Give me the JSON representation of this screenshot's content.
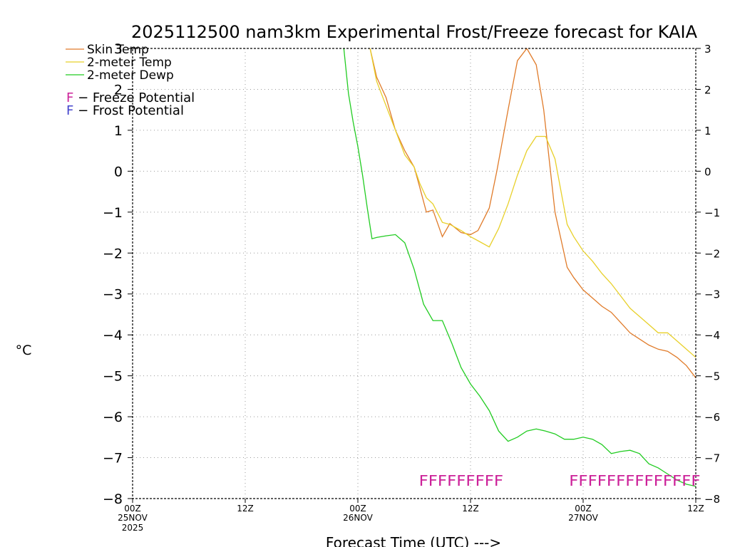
{
  "chart_data": {
    "type": "line",
    "title": "2025112500 nam3km Experimental Frost/Freeze forecast for KAIA",
    "xlabel": "Forecast Time (UTC) --->",
    "ylabel": "°C",
    "xlim": [
      0,
      60
    ],
    "ylim": [
      -8,
      3
    ],
    "grid": true,
    "x_ticks": [
      {
        "x": 0,
        "hour": "00Z",
        "date": "25NOV",
        "year": "2025"
      },
      {
        "x": 12,
        "hour": "12Z",
        "date": "",
        "year": ""
      },
      {
        "x": 24,
        "hour": "00Z",
        "date": "26NOV",
        "year": ""
      },
      {
        "x": 36,
        "hour": "12Z",
        "date": "",
        "year": ""
      },
      {
        "x": 48,
        "hour": "00Z",
        "date": "27NOV",
        "year": ""
      },
      {
        "x": 60,
        "hour": "12Z",
        "date": "",
        "year": ""
      }
    ],
    "y_ticks": [
      3,
      2,
      1,
      0,
      -1,
      -2,
      -3,
      -4,
      -5,
      -6,
      -7,
      -8
    ],
    "y_tick_labels_left": [
      "3",
      "2",
      "1",
      "0",
      "−1",
      "−2",
      "−3",
      "−4",
      "−5",
      "−6",
      "−7",
      "−8"
    ],
    "y_tick_labels_right": [
      "3",
      "2",
      "1",
      "0",
      "−1",
      "−2",
      "−3",
      "−4",
      "−5",
      "−6",
      "−7",
      "−8"
    ],
    "series": [
      {
        "name": "Skin Temp",
        "color": "#e07b2a",
        "x": [
          25.3,
          26.0,
          27.0,
          28.0,
          29.0,
          30.0,
          30.6,
          31.3,
          32.0,
          33.0,
          33.8,
          35.0,
          36.0,
          36.8,
          38.0,
          38.8,
          40.0,
          41.0,
          42.0,
          43.0,
          43.8,
          45.0,
          46.3,
          47.0,
          48.0,
          49.0,
          50.0,
          51.0,
          52.0,
          53.0,
          54.0,
          55.0,
          56.0,
          57.0,
          58.0,
          59.0,
          60.0
        ],
        "y": [
          3.0,
          2.3,
          1.8,
          1.0,
          0.5,
          0.1,
          -0.4,
          -1.0,
          -0.95,
          -1.6,
          -1.28,
          -1.5,
          -1.55,
          -1.45,
          -0.9,
          0.0,
          1.5,
          2.7,
          3.0,
          2.6,
          1.5,
          -1.0,
          -2.35,
          -2.6,
          -2.9,
          -3.1,
          -3.3,
          -3.45,
          -3.7,
          -3.95,
          -4.1,
          -4.25,
          -4.35,
          -4.4,
          -4.55,
          -4.75,
          -5.05
        ]
      },
      {
        "name": "2-meter Temp",
        "color": "#e8d02a",
        "x": [
          25.3,
          26.0,
          27.0,
          28.0,
          29.0,
          30.0,
          30.6,
          31.3,
          32.0,
          33.0,
          33.8,
          35.0,
          36.0,
          36.8,
          38.0,
          39.0,
          40.0,
          41.0,
          42.0,
          43.0,
          44.0,
          45.0,
          46.3,
          47.0,
          48.0,
          49.0,
          50.0,
          51.0,
          52.0,
          53.0,
          54.0,
          55.0,
          56.0,
          57.0,
          58.0,
          59.0,
          60.0
        ],
        "y": [
          3.0,
          2.2,
          1.6,
          1.0,
          0.4,
          0.1,
          -0.3,
          -0.65,
          -0.8,
          -1.25,
          -1.3,
          -1.45,
          -1.6,
          -1.7,
          -1.85,
          -1.4,
          -0.8,
          -0.1,
          0.5,
          0.85,
          0.85,
          0.3,
          -1.3,
          -1.6,
          -1.95,
          -2.2,
          -2.5,
          -2.75,
          -3.05,
          -3.35,
          -3.55,
          -3.75,
          -3.95,
          -3.95,
          -4.15,
          -4.35,
          -4.55
        ]
      },
      {
        "name": "2-meter Dewp",
        "color": "#22cc22",
        "x": [
          22.5,
          23.0,
          23.5,
          24.0,
          24.5,
          25.0,
          25.5,
          26.0,
          27.0,
          28.0,
          29.0,
          30.0,
          31.0,
          32.0,
          33.0,
          34.0,
          35.0,
          36.0,
          37.0,
          38.0,
          39.0,
          40.0,
          41.0,
          42.0,
          43.0,
          44.0,
          45.0,
          46.0,
          47.0,
          48.0,
          49.0,
          50.0,
          51.0,
          52.0,
          53.0,
          54.0,
          55.0,
          56.0,
          57.0,
          58.0,
          59.0,
          60.0
        ],
        "y": [
          3.0,
          1.9,
          1.2,
          0.6,
          -0.1,
          -0.9,
          -1.65,
          -1.62,
          -1.58,
          -1.55,
          -1.75,
          -2.4,
          -3.25,
          -3.65,
          -3.65,
          -4.2,
          -4.8,
          -5.2,
          -5.5,
          -5.85,
          -6.35,
          -6.6,
          -6.5,
          -6.35,
          -6.3,
          -6.35,
          -6.42,
          -6.55,
          -6.55,
          -6.5,
          -6.55,
          -6.68,
          -6.9,
          -6.85,
          -6.82,
          -6.9,
          -7.15,
          -7.25,
          -7.4,
          -7.55,
          -7.65,
          -7.7
        ]
      }
    ],
    "legend": {
      "position": "top-left",
      "entries": [
        {
          "label": "Skin Temp",
          "color": "#e07b2a"
        },
        {
          "label": "2-meter Temp",
          "color": "#e8d02a"
        },
        {
          "label": "2-meter Dewp",
          "color": "#22cc22"
        }
      ],
      "markers": [
        {
          "symbol": "F",
          "text": " − Freeze Potential",
          "color": "#cc2299"
        },
        {
          "symbol": "F",
          "text": " − Frost Potential",
          "color": "#4444cc"
        }
      ]
    },
    "annotations": [
      {
        "text": "FFFFFFFFF",
        "x_start": 30.5,
        "x_end": 39.5,
        "y": -7.55,
        "color": "#cc2299",
        "meaning": "Freeze Potential"
      },
      {
        "text": "FFFFFFFFFFFFFF",
        "x_start": 46.5,
        "x_end": 60.5,
        "y": -7.55,
        "color": "#cc2299",
        "meaning": "Freeze Potential"
      }
    ]
  }
}
